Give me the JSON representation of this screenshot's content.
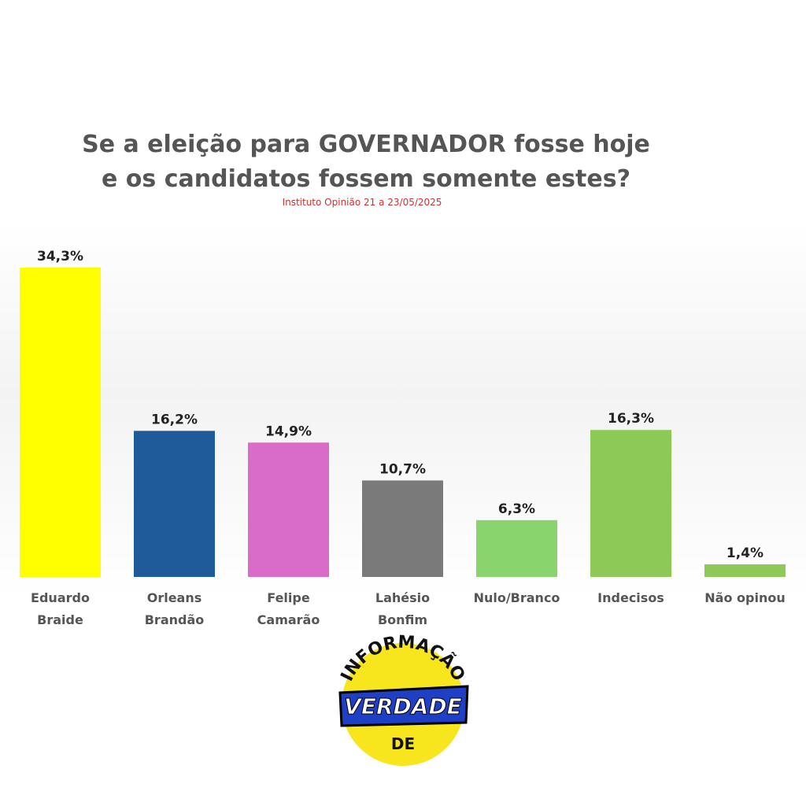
{
  "chart_data": {
    "type": "bar",
    "title": [
      "Se a eleição para GOVERNADOR fosse hoje",
      "e os candidatos fossem somente estes?"
    ],
    "subtitle": "Instituto Opinião 21 a 23/05/2025",
    "categories": [
      "Eduardo Braide",
      "Orleans Brandão",
      "Felipe Camarão",
      "Lahésio Bonfim",
      "Nulo/Branco",
      "Indecisos",
      "Não opinou"
    ],
    "values": [
      34.3,
      16.2,
      14.9,
      10.7,
      6.3,
      16.3,
      1.4
    ],
    "value_labels": [
      "34,3%",
      "16,2%",
      "14,9%",
      "10,7%",
      "6,3%",
      "16,3%",
      "1,4%"
    ],
    "colors": [
      "#ffff00",
      "#1f5a9a",
      "#d96bc9",
      "#7a7a7a",
      "#8ad46e",
      "#8dc956",
      "#8dc956"
    ]
  },
  "logo": {
    "top": "INFORMAÇÃO",
    "middle": "VERDADE",
    "bottom": "DE"
  }
}
